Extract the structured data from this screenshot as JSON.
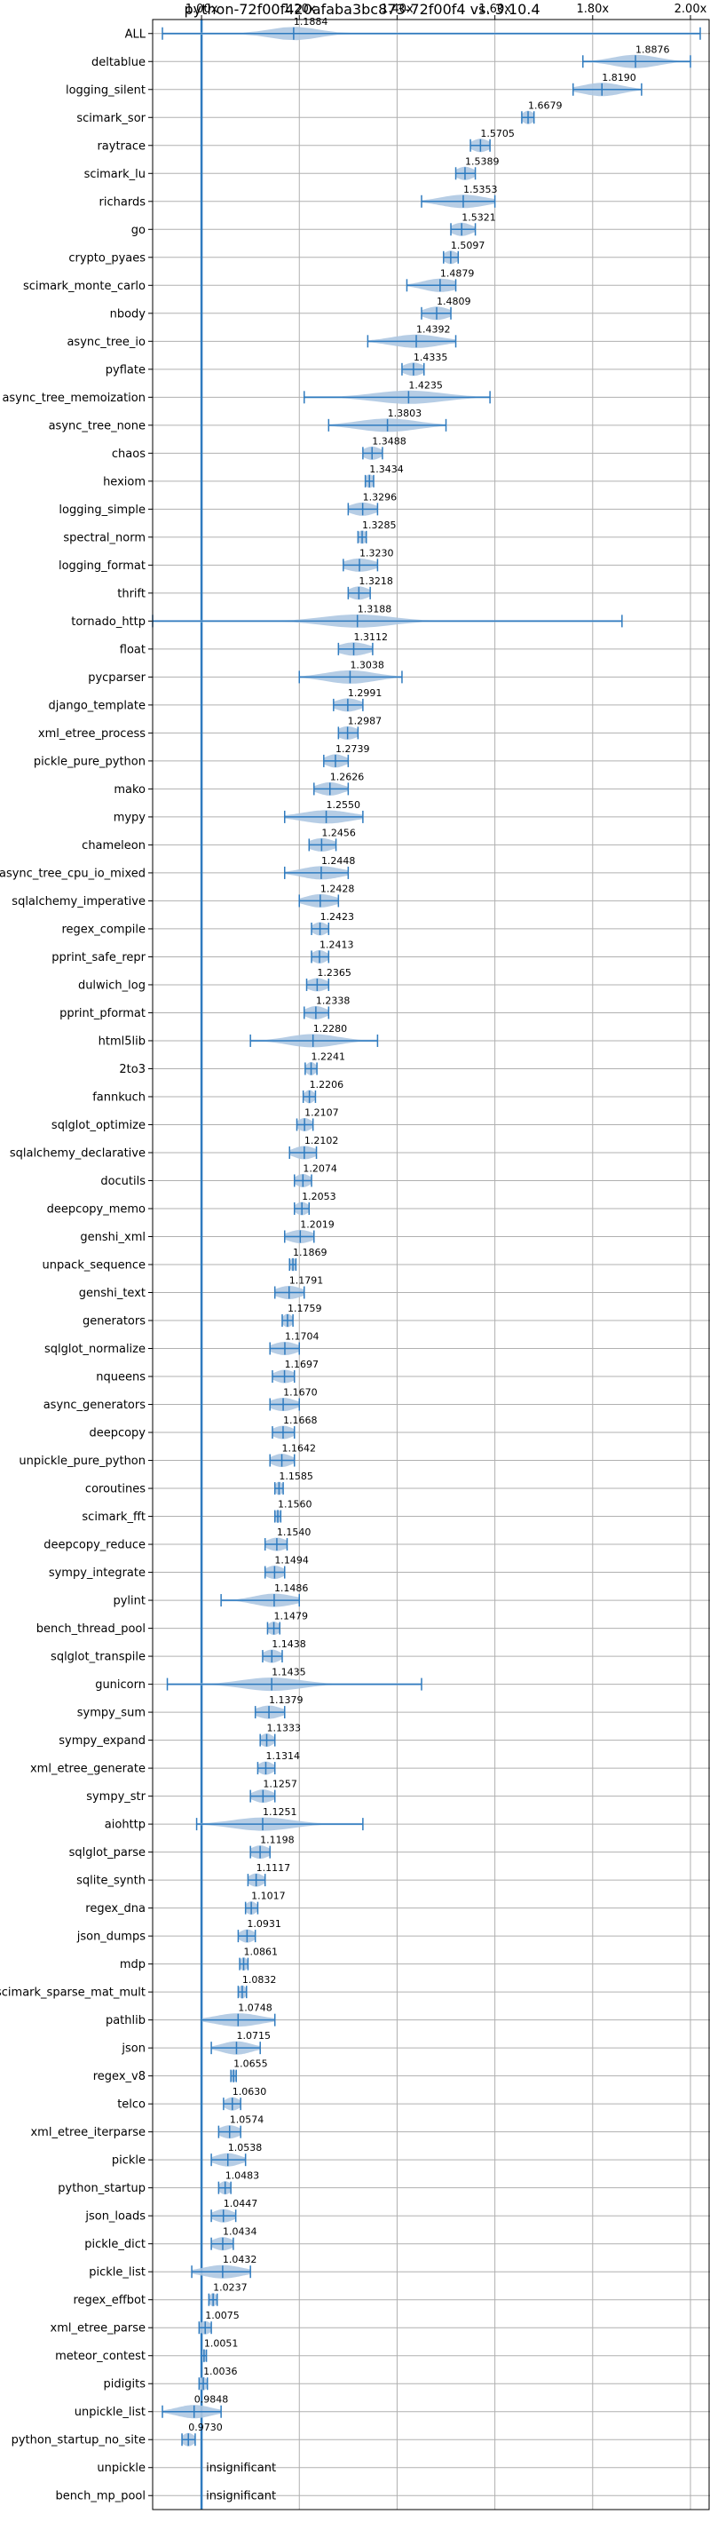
{
  "chart_data": {
    "type": "violin",
    "title": "python-72f00f420afaba3bc873-72f00f4 vs. 3.10.4",
    "orientation": "horizontal",
    "x_ticks": [
      "1.00x",
      "1.20x",
      "1.40x",
      "1.60x",
      "1.80x",
      "2.00x"
    ],
    "x_tick_values": [
      1.0,
      1.2,
      1.4,
      1.6,
      1.8,
      2.0
    ],
    "xlim": [
      0.9,
      2.04
    ],
    "grid": true,
    "reference_line": 1.0,
    "colors": {
      "violin": "#aec8e2",
      "line": "#2f7bbf",
      "grid": "#b0b0b0"
    },
    "benchmarks": [
      {
        "name": "ALL",
        "value": "1.1884",
        "mean": 1.1884,
        "min": 0.92,
        "max": 2.02,
        "spread": 0.05,
        "label": "1.1884"
      },
      {
        "name": "deltablue",
        "value": "1.8876",
        "mean": 1.8876,
        "min": 1.78,
        "max": 2.0,
        "spread": 0.045,
        "label": "1.8876"
      },
      {
        "name": "logging_silent",
        "value": "1.8190",
        "mean": 1.819,
        "min": 1.76,
        "max": 1.9,
        "spread": 0.04,
        "label": "1.8190"
      },
      {
        "name": "scimark_sor",
        "value": "1.6679",
        "mean": 1.6679,
        "min": 1.655,
        "max": 1.68,
        "spread": 0.012,
        "label": "1.6679"
      },
      {
        "name": "raytrace",
        "value": "1.5705",
        "mean": 1.5705,
        "min": 1.55,
        "max": 1.59,
        "spread": 0.018,
        "label": "1.5705"
      },
      {
        "name": "scimark_lu",
        "value": "1.5389",
        "mean": 1.5389,
        "min": 1.52,
        "max": 1.56,
        "spread": 0.018,
        "label": "1.5389"
      },
      {
        "name": "richards",
        "value": "1.5353",
        "mean": 1.5353,
        "min": 1.45,
        "max": 1.6,
        "spread": 0.045,
        "label": "1.5353"
      },
      {
        "name": "go",
        "value": "1.5321",
        "mean": 1.5321,
        "min": 1.51,
        "max": 1.56,
        "spread": 0.02,
        "label": "1.5321"
      },
      {
        "name": "crypto_pyaes",
        "value": "1.5097",
        "mean": 1.5097,
        "min": 1.495,
        "max": 1.525,
        "spread": 0.014,
        "label": "1.5097"
      },
      {
        "name": "scimark_monte_carlo",
        "value": "1.4879",
        "mean": 1.4879,
        "min": 1.42,
        "max": 1.52,
        "spread": 0.035,
        "label": "1.4879"
      },
      {
        "name": "nbody",
        "value": "1.4809",
        "mean": 1.4809,
        "min": 1.45,
        "max": 1.51,
        "spread": 0.025,
        "label": "1.4809"
      },
      {
        "name": "async_tree_io",
        "value": "1.4392",
        "mean": 1.4392,
        "min": 1.34,
        "max": 1.52,
        "spread": 0.05,
        "label": "1.4392"
      },
      {
        "name": "pyflate",
        "value": "1.4335",
        "mean": 1.4335,
        "min": 1.41,
        "max": 1.455,
        "spread": 0.02,
        "label": "1.4335"
      },
      {
        "name": "async_tree_memoization",
        "value": "1.4235",
        "mean": 1.4235,
        "min": 1.21,
        "max": 1.59,
        "spread": 0.07,
        "label": "1.4235"
      },
      {
        "name": "async_tree_none",
        "value": "1.3803",
        "mean": 1.3803,
        "min": 1.26,
        "max": 1.5,
        "spread": 0.06,
        "label": "1.3803"
      },
      {
        "name": "chaos",
        "value": "1.3488",
        "mean": 1.3488,
        "min": 1.33,
        "max": 1.37,
        "spread": 0.018,
        "label": "1.3488"
      },
      {
        "name": "hexiom",
        "value": "1.3434",
        "mean": 1.3434,
        "min": 1.335,
        "max": 1.352,
        "spread": 0.01,
        "label": "1.3434"
      },
      {
        "name": "logging_simple",
        "value": "1.3296",
        "mean": 1.3296,
        "min": 1.3,
        "max": 1.36,
        "spread": 0.025,
        "label": "1.3296"
      },
      {
        "name": "spectral_norm",
        "value": "1.3285",
        "mean": 1.3285,
        "min": 1.32,
        "max": 1.337,
        "spread": 0.01,
        "label": "1.3285"
      },
      {
        "name": "logging_format",
        "value": "1.3230",
        "mean": 1.323,
        "min": 1.29,
        "max": 1.36,
        "spread": 0.03,
        "label": "1.3230"
      },
      {
        "name": "thrift",
        "value": "1.3218",
        "mean": 1.3218,
        "min": 1.3,
        "max": 1.345,
        "spread": 0.02,
        "label": "1.3218"
      },
      {
        "name": "tornado_http",
        "value": "1.3188",
        "mean": 1.3188,
        "min": 0.9,
        "max": 1.86,
        "spread": 0.07,
        "label": "1.3188"
      },
      {
        "name": "float",
        "value": "1.3112",
        "mean": 1.3112,
        "min": 1.28,
        "max": 1.35,
        "spread": 0.03,
        "label": "1.3112"
      },
      {
        "name": "pycparser",
        "value": "1.3038",
        "mean": 1.3038,
        "min": 1.2,
        "max": 1.41,
        "spread": 0.05,
        "label": "1.3038"
      },
      {
        "name": "django_template",
        "value": "1.2991",
        "mean": 1.2991,
        "min": 1.27,
        "max": 1.33,
        "spread": 0.025,
        "label": "1.2991"
      },
      {
        "name": "xml_etree_process",
        "value": "1.2987",
        "mean": 1.2987,
        "min": 1.28,
        "max": 1.32,
        "spread": 0.02,
        "label": "1.2987"
      },
      {
        "name": "pickle_pure_python",
        "value": "1.2739",
        "mean": 1.2739,
        "min": 1.25,
        "max": 1.3,
        "spread": 0.02,
        "label": "1.2739"
      },
      {
        "name": "mako",
        "value": "1.2626",
        "mean": 1.2626,
        "min": 1.23,
        "max": 1.3,
        "spread": 0.025,
        "label": "1.2626"
      },
      {
        "name": "mypy",
        "value": "1.2550",
        "mean": 1.255,
        "min": 1.17,
        "max": 1.33,
        "spread": 0.05,
        "label": "1.2550"
      },
      {
        "name": "chameleon",
        "value": "1.2456",
        "mean": 1.2456,
        "min": 1.22,
        "max": 1.275,
        "spread": 0.025,
        "label": "1.2456"
      },
      {
        "name": "async_tree_cpu_io_mixed",
        "value": "1.2448",
        "mean": 1.2448,
        "min": 1.17,
        "max": 1.3,
        "spread": 0.04,
        "label": "1.2448"
      },
      {
        "name": "sqlalchemy_imperative",
        "value": "1.2428",
        "mean": 1.2428,
        "min": 1.2,
        "max": 1.28,
        "spread": 0.03,
        "label": "1.2428"
      },
      {
        "name": "regex_compile",
        "value": "1.2423",
        "mean": 1.2423,
        "min": 1.225,
        "max": 1.26,
        "spread": 0.015,
        "label": "1.2423"
      },
      {
        "name": "pprint_safe_repr",
        "value": "1.2413",
        "mean": 1.2413,
        "min": 1.225,
        "max": 1.26,
        "spread": 0.015,
        "label": "1.2413"
      },
      {
        "name": "dulwich_log",
        "value": "1.2365",
        "mean": 1.2365,
        "min": 1.215,
        "max": 1.26,
        "spread": 0.02,
        "label": "1.2365"
      },
      {
        "name": "pprint_pformat",
        "value": "1.2338",
        "mean": 1.2338,
        "min": 1.21,
        "max": 1.26,
        "spread": 0.02,
        "label": "1.2338"
      },
      {
        "name": "html5lib",
        "value": "1.2280",
        "mean": 1.228,
        "min": 1.1,
        "max": 1.36,
        "spread": 0.05,
        "label": "1.2280"
      },
      {
        "name": "2to3",
        "value": "1.2241",
        "mean": 1.2241,
        "min": 1.212,
        "max": 1.236,
        "spread": 0.01,
        "label": "1.2241"
      },
      {
        "name": "fannkuch",
        "value": "1.2206",
        "mean": 1.2206,
        "min": 1.208,
        "max": 1.233,
        "spread": 0.01,
        "label": "1.2206"
      },
      {
        "name": "sqlglot_optimize",
        "value": "1.2107",
        "mean": 1.2107,
        "min": 1.195,
        "max": 1.228,
        "spread": 0.014,
        "label": "1.2107"
      },
      {
        "name": "sqlalchemy_declarative",
        "value": "1.2102",
        "mean": 1.2102,
        "min": 1.18,
        "max": 1.235,
        "spread": 0.022,
        "label": "1.2102"
      },
      {
        "name": "docutils",
        "value": "1.2074",
        "mean": 1.2074,
        "min": 1.19,
        "max": 1.225,
        "spread": 0.015,
        "label": "1.2074"
      },
      {
        "name": "deepcopy_memo",
        "value": "1.2053",
        "mean": 1.2053,
        "min": 1.19,
        "max": 1.22,
        "spread": 0.013,
        "label": "1.2053"
      },
      {
        "name": "genshi_xml",
        "value": "1.2019",
        "mean": 1.2019,
        "min": 1.17,
        "max": 1.23,
        "spread": 0.025,
        "label": "1.2019"
      },
      {
        "name": "unpack_sequence",
        "value": "1.1869",
        "mean": 1.1869,
        "min": 1.18,
        "max": 1.193,
        "spread": 0.006,
        "label": "1.1869"
      },
      {
        "name": "genshi_text",
        "value": "1.1791",
        "mean": 1.1791,
        "min": 1.15,
        "max": 1.21,
        "spread": 0.025,
        "label": "1.1791"
      },
      {
        "name": "generators",
        "value": "1.1759",
        "mean": 1.1759,
        "min": 1.165,
        "max": 1.187,
        "spread": 0.01,
        "label": "1.1759"
      },
      {
        "name": "sqlglot_normalize",
        "value": "1.1704",
        "mean": 1.1704,
        "min": 1.14,
        "max": 1.2,
        "spread": 0.025,
        "label": "1.1704"
      },
      {
        "name": "nqueens",
        "value": "1.1697",
        "mean": 1.1697,
        "min": 1.145,
        "max": 1.19,
        "spread": 0.02,
        "label": "1.1697"
      },
      {
        "name": "async_generators",
        "value": "1.1670",
        "mean": 1.167,
        "min": 1.14,
        "max": 1.2,
        "spread": 0.025,
        "label": "1.1670"
      },
      {
        "name": "deepcopy",
        "value": "1.1668",
        "mean": 1.1668,
        "min": 1.145,
        "max": 1.19,
        "spread": 0.02,
        "label": "1.1668"
      },
      {
        "name": "unpickle_pure_python",
        "value": "1.1642",
        "mean": 1.1642,
        "min": 1.14,
        "max": 1.19,
        "spread": 0.02,
        "label": "1.1642"
      },
      {
        "name": "coroutines",
        "value": "1.1585",
        "mean": 1.1585,
        "min": 1.15,
        "max": 1.167,
        "spread": 0.008,
        "label": "1.1585"
      },
      {
        "name": "scimark_fft",
        "value": "1.1560",
        "mean": 1.156,
        "min": 1.15,
        "max": 1.162,
        "spread": 0.006,
        "label": "1.1560"
      },
      {
        "name": "deepcopy_reduce",
        "value": "1.1540",
        "mean": 1.154,
        "min": 1.13,
        "max": 1.175,
        "spread": 0.02,
        "label": "1.1540"
      },
      {
        "name": "sympy_integrate",
        "value": "1.1494",
        "mean": 1.1494,
        "min": 1.13,
        "max": 1.17,
        "spread": 0.018,
        "label": "1.1494"
      },
      {
        "name": "pylint",
        "value": "1.1486",
        "mean": 1.1486,
        "min": 1.04,
        "max": 1.2,
        "spread": 0.04,
        "label": "1.1486"
      },
      {
        "name": "bench_thread_pool",
        "value": "1.1479",
        "mean": 1.1479,
        "min": 1.135,
        "max": 1.16,
        "spread": 0.012,
        "label": "1.1479"
      },
      {
        "name": "sqlglot_transpile",
        "value": "1.1438",
        "mean": 1.1438,
        "min": 1.125,
        "max": 1.165,
        "spread": 0.017,
        "label": "1.1438"
      },
      {
        "name": "gunicorn",
        "value": "1.1435",
        "mean": 1.1435,
        "min": 0.93,
        "max": 1.45,
        "spread": 0.06,
        "label": "1.1435"
      },
      {
        "name": "sympy_sum",
        "value": "1.1379",
        "mean": 1.1379,
        "min": 1.11,
        "max": 1.17,
        "spread": 0.025,
        "label": "1.1379"
      },
      {
        "name": "sympy_expand",
        "value": "1.1333",
        "mean": 1.1333,
        "min": 1.12,
        "max": 1.15,
        "spread": 0.013,
        "label": "1.1333"
      },
      {
        "name": "xml_etree_generate",
        "value": "1.1314",
        "mean": 1.1314,
        "min": 1.115,
        "max": 1.15,
        "spread": 0.015,
        "label": "1.1314"
      },
      {
        "name": "sympy_str",
        "value": "1.1257",
        "mean": 1.1257,
        "min": 1.1,
        "max": 1.15,
        "spread": 0.02,
        "label": "1.1257"
      },
      {
        "name": "aiohttp",
        "value": "1.1251",
        "mean": 1.1251,
        "min": 0.99,
        "max": 1.33,
        "spread": 0.06,
        "label": "1.1251"
      },
      {
        "name": "sqlglot_parse",
        "value": "1.1198",
        "mean": 1.1198,
        "min": 1.1,
        "max": 1.14,
        "spread": 0.018,
        "label": "1.1198"
      },
      {
        "name": "sqlite_synth",
        "value": "1.1117",
        "mean": 1.1117,
        "min": 1.095,
        "max": 1.13,
        "spread": 0.015,
        "label": "1.1117"
      },
      {
        "name": "regex_dna",
        "value": "1.1017",
        "mean": 1.1017,
        "min": 1.09,
        "max": 1.115,
        "spread": 0.011,
        "label": "1.1017"
      },
      {
        "name": "json_dumps",
        "value": "1.0931",
        "mean": 1.0931,
        "min": 1.075,
        "max": 1.11,
        "spread": 0.015,
        "label": "1.0931"
      },
      {
        "name": "mdp",
        "value": "1.0861",
        "mean": 1.0861,
        "min": 1.078,
        "max": 1.095,
        "spread": 0.008,
        "label": "1.0861"
      },
      {
        "name": "scimark_sparse_mat_mult",
        "value": "1.0832",
        "mean": 1.0832,
        "min": 1.075,
        "max": 1.092,
        "spread": 0.008,
        "label": "1.0832"
      },
      {
        "name": "pathlib",
        "value": "1.0748",
        "mean": 1.0748,
        "min": 1.0,
        "max": 1.15,
        "spread": 0.045,
        "label": "1.0748"
      },
      {
        "name": "json",
        "value": "1.0715",
        "mean": 1.0715,
        "min": 1.02,
        "max": 1.12,
        "spread": 0.03,
        "label": "1.0715"
      },
      {
        "name": "regex_v8",
        "value": "1.0655",
        "mean": 1.0655,
        "min": 1.06,
        "max": 1.071,
        "spread": 0.005,
        "label": "1.0655"
      },
      {
        "name": "telco",
        "value": "1.0630",
        "mean": 1.063,
        "min": 1.045,
        "max": 1.08,
        "spread": 0.015,
        "label": "1.0630"
      },
      {
        "name": "xml_etree_iterparse",
        "value": "1.0574",
        "mean": 1.0574,
        "min": 1.035,
        "max": 1.08,
        "spread": 0.02,
        "label": "1.0574"
      },
      {
        "name": "pickle",
        "value": "1.0538",
        "mean": 1.0538,
        "min": 1.02,
        "max": 1.09,
        "spread": 0.025,
        "label": "1.0538"
      },
      {
        "name": "python_startup",
        "value": "1.0483",
        "mean": 1.0483,
        "min": 1.035,
        "max": 1.06,
        "spread": 0.012,
        "label": "1.0483"
      },
      {
        "name": "json_loads",
        "value": "1.0447",
        "mean": 1.0447,
        "min": 1.02,
        "max": 1.07,
        "spread": 0.02,
        "label": "1.0447"
      },
      {
        "name": "pickle_dict",
        "value": "1.0434",
        "mean": 1.0434,
        "min": 1.02,
        "max": 1.065,
        "spread": 0.02,
        "label": "1.0434"
      },
      {
        "name": "pickle_list",
        "value": "1.0432",
        "mean": 1.0432,
        "min": 0.98,
        "max": 1.1,
        "spread": 0.04,
        "label": "1.0432"
      },
      {
        "name": "regex_effbot",
        "value": "1.0237",
        "mean": 1.0237,
        "min": 1.015,
        "max": 1.032,
        "spread": 0.008,
        "label": "1.0237"
      },
      {
        "name": "xml_etree_parse",
        "value": "1.0075",
        "mean": 1.0075,
        "min": 0.995,
        "max": 1.02,
        "spread": 0.012,
        "label": "1.0075"
      },
      {
        "name": "meteor_contest",
        "value": "1.0051",
        "mean": 1.0051,
        "min": 1.0,
        "max": 1.01,
        "spread": 0.005,
        "label": "1.0051"
      },
      {
        "name": "pidigits",
        "value": "1.0036",
        "mean": 1.0036,
        "min": 0.995,
        "max": 1.012,
        "spread": 0.008,
        "label": "1.0036"
      },
      {
        "name": "unpickle_list",
        "value": "0.9848",
        "mean": 0.9848,
        "min": 0.92,
        "max": 1.04,
        "spread": 0.035,
        "label": "0.9848"
      },
      {
        "name": "python_startup_no_site",
        "value": "0.9730",
        "mean": 0.973,
        "min": 0.96,
        "max": 0.987,
        "spread": 0.012,
        "label": "0.9730"
      },
      {
        "name": "unpickle",
        "value": null,
        "label": "insignificant"
      },
      {
        "name": "bench_mp_pool",
        "value": null,
        "label": "insignificant"
      }
    ]
  }
}
